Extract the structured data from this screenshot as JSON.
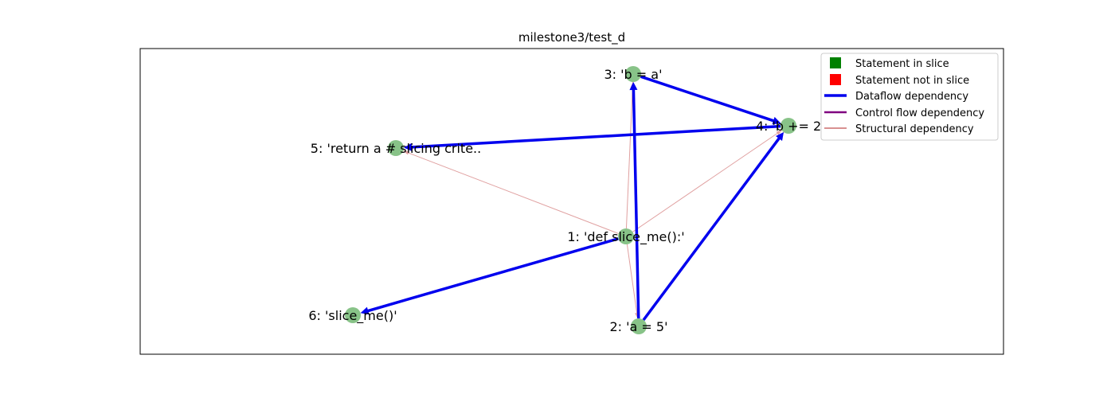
{
  "title": "milestone3/test_d",
  "colors": {
    "node_fill": "#6ab46a",
    "dataflow": "#0000ee",
    "control_flow": "#800080",
    "structural": "#e0a0a0",
    "structural_legend": "#b22222",
    "in_slice": "#008000",
    "not_in_slice": "#ff0000"
  },
  "nodes": [
    {
      "id": "n1",
      "label": "1: 'def slice_me():'"
    },
    {
      "id": "n2",
      "label": "2: 'a = 5'"
    },
    {
      "id": "n3",
      "label": "3: 'b = a'"
    },
    {
      "id": "n4",
      "label": "4: 'b += 2"
    },
    {
      "id": "n5",
      "label": "5: 'return a # slicing crite.."
    },
    {
      "id": "n6",
      "label": "6: 'slice_me()'"
    }
  ],
  "edges": {
    "dataflow": [
      {
        "from": "n3",
        "to": "n4"
      },
      {
        "from": "n4",
        "to": "n5"
      },
      {
        "from": "n2",
        "to": "n3"
      },
      {
        "from": "n2",
        "to": "n4"
      },
      {
        "from": "n1",
        "to": "n6"
      }
    ],
    "structural": [
      {
        "from": "n1",
        "to": "n5"
      },
      {
        "from": "n1",
        "to": "n3"
      },
      {
        "from": "n1",
        "to": "n4"
      },
      {
        "from": "n1",
        "to": "n2"
      },
      {
        "from": "n2",
        "to": "n4"
      }
    ]
  },
  "legend": {
    "in_slice": "Statement in slice",
    "not_in_slice": "Statement not in slice",
    "dataflow": "Dataflow dependency",
    "control_flow": "Control flow dependency",
    "structural": "Structural dependency"
  }
}
